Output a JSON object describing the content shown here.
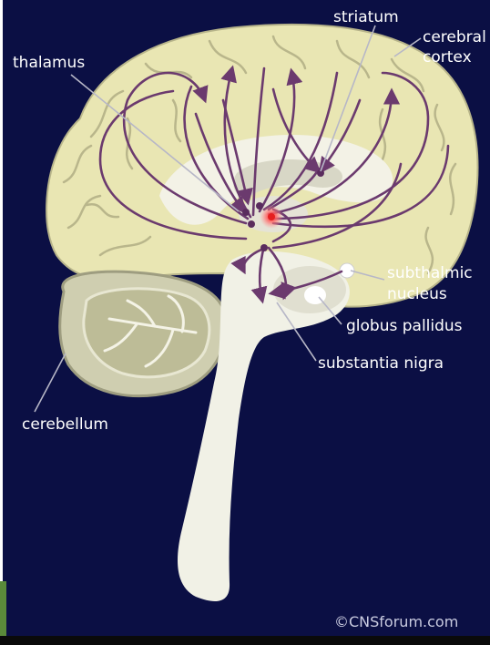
{
  "labels": {
    "striatum": "striatum",
    "cerebral_cortex_line1": "cerebral",
    "cerebral_cortex_line2": "cortex",
    "thalamus": "thalamus",
    "subthalamic_line1": "subthalmic",
    "subthalamic_line2": "nucleus",
    "globus_pallidus": "globus pallidus",
    "substantia_nigra": "substantia nigra",
    "cerebellum": "cerebellum"
  },
  "copyright": "©CNSforum.com",
  "colors": {
    "background": "#0b0f44",
    "cortex": "#e9e6b3",
    "brainstem": "#f1f1e6",
    "cerebellum": "#cfceb0",
    "pathway": "#6b3a6e",
    "label_text": "#ffffff",
    "highlight": "#ff3030"
  }
}
